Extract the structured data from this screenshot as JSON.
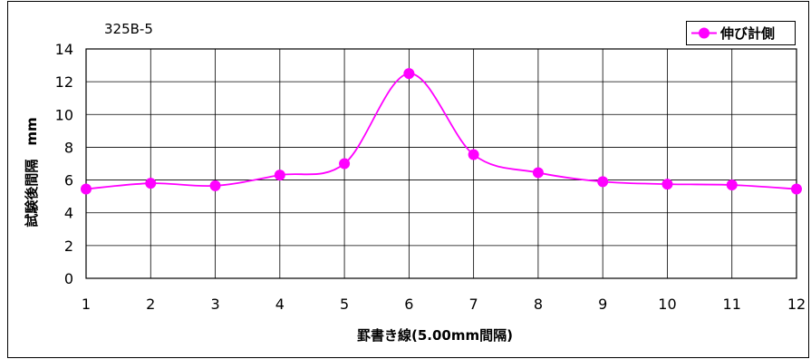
{
  "chart_data": {
    "type": "line",
    "title": "325B-5",
    "xlabel": "罫書き線(5.00mm間隔)",
    "ylabel": "試験後間隔　mm",
    "x": [
      1,
      2,
      3,
      4,
      5,
      6,
      7,
      8,
      9,
      10,
      11,
      12
    ],
    "xlim": [
      1,
      12
    ],
    "ylim": [
      0,
      14
    ],
    "yticks": [
      0,
      2,
      4,
      6,
      8,
      10,
      12,
      14
    ],
    "grid": true,
    "legend_position": "top-right",
    "series": [
      {
        "name": "伸び計側",
        "color": "#ff00ff",
        "values": [
          5.45,
          5.8,
          5.65,
          6.3,
          7.0,
          12.5,
          7.55,
          6.45,
          5.9,
          5.75,
          5.7,
          5.45
        ]
      }
    ]
  },
  "colors": {
    "series": "#ff00ff",
    "grid": "#000000",
    "plot_background": "#ffffff"
  }
}
